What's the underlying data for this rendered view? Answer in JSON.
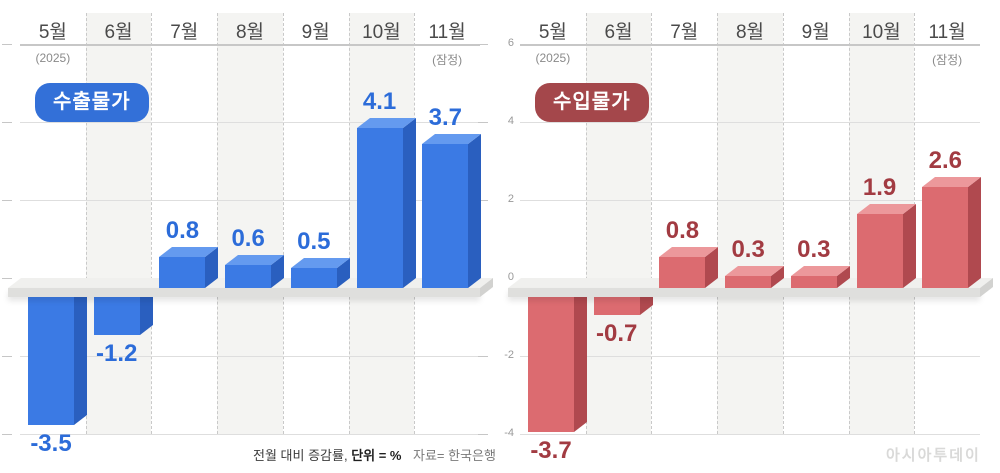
{
  "chart_data": [
    {
      "type": "bar",
      "title": "수출물가",
      "categories": [
        "5월",
        "6월",
        "7월",
        "8월",
        "9월",
        "10월",
        "11월"
      ],
      "category_note_first": "(2025)",
      "category_note_last": "(잠정)",
      "values": [
        -3.5,
        -1.2,
        0.8,
        0.6,
        0.5,
        4.1,
        3.7
      ],
      "data_labels": [
        "-3.5",
        "-1.2",
        "0.8",
        "0.6",
        "0.5",
        "4.1",
        "3.7"
      ],
      "xlabel": "",
      "ylabel": "",
      "ylim": [
        -4,
        6
      ],
      "grid": true,
      "y_axis": {
        "tick_values": [
          6,
          4,
          2,
          0,
          -2,
          -4
        ],
        "tick_labels": [
          "6",
          "4",
          "2",
          "0",
          "-2",
          "-4"
        ],
        "labels_visible": false
      },
      "colors": {
        "front": "#3b7ae4",
        "top": "#649aef",
        "side": "#2a5fbf",
        "label": "#2c6cd9",
        "badge": "#3370d8"
      }
    },
    {
      "type": "bar",
      "title": "수입물가",
      "categories": [
        "5월",
        "6월",
        "7월",
        "8월",
        "9월",
        "10월",
        "11월"
      ],
      "category_note_first": "(2025)",
      "category_note_last": "(잠정)",
      "values": [
        -3.7,
        -0.7,
        0.8,
        0.3,
        0.3,
        1.9,
        2.6
      ],
      "data_labels": [
        "-3.7",
        "-0.7",
        "0.8",
        "0.3",
        "0.3",
        "1.9",
        "2.6"
      ],
      "xlabel": "",
      "ylabel": "",
      "ylim": [
        -4,
        6
      ],
      "grid": true,
      "y_axis": {
        "tick_values": [
          6,
          4,
          2,
          0,
          -2,
          -4
        ],
        "tick_labels": [
          "6",
          "4",
          "2",
          "0",
          "-2",
          "-4"
        ],
        "labels_visible": true
      },
      "colors": {
        "front": "#dc6b70",
        "top": "#ec989b",
        "side": "#b0494f",
        "label": "#a23b42",
        "badge": "#a4474b"
      }
    }
  ],
  "footer": {
    "note_regular": "전월 대비 증감률,",
    "note_bold": "단위 = %",
    "source": "자료= 한국은행"
  },
  "watermark": "아시아투데이"
}
